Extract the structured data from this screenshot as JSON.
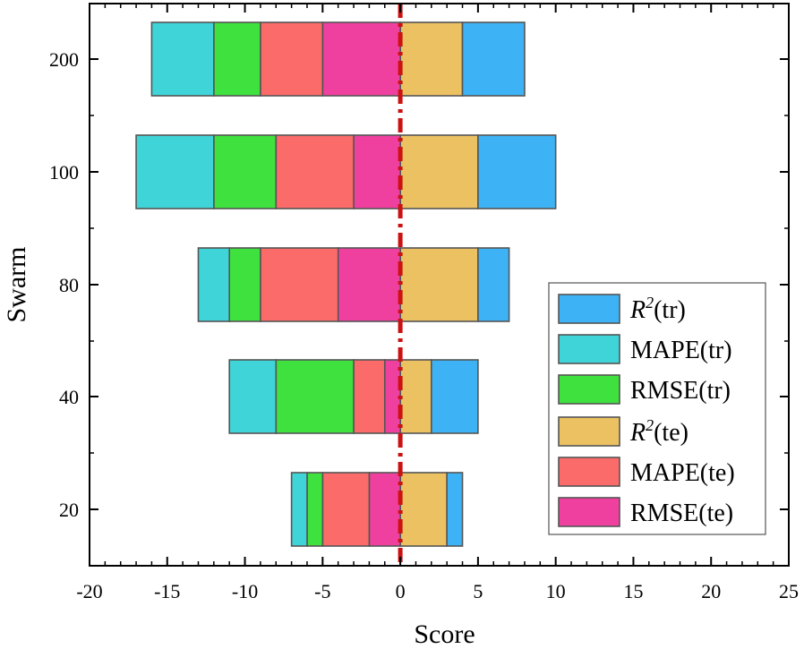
{
  "chart_data": {
    "type": "bar",
    "orientation": "horizontal",
    "stacked": "diverging",
    "title": "",
    "xlabel": "Score",
    "ylabel": "Swarm",
    "xlim": [
      -20,
      25
    ],
    "xticks": [
      -20,
      -15,
      -10,
      -5,
      0,
      5,
      10,
      15,
      20,
      25
    ],
    "categories": [
      "20",
      "40",
      "80",
      "100",
      "200"
    ],
    "reference_line": {
      "x": 0,
      "color": "#cc1111",
      "style": "dash-dot"
    },
    "series": [
      {
        "key": "r2_tr",
        "name": "R2(tr)",
        "base": "R",
        "sup": "2",
        "suffix": "(tr)",
        "italic": true,
        "color": "#3db3f5",
        "side": "positive",
        "values": [
          1,
          3,
          2,
          5,
          4
        ]
      },
      {
        "key": "mape_tr",
        "name": "MAPE(tr)",
        "base": "MAPE",
        "sup": "",
        "suffix": "(tr)",
        "italic": false,
        "color": "#3fd4d7",
        "side": "negative",
        "values": [
          1,
          3,
          2,
          5,
          4
        ]
      },
      {
        "key": "rmse_tr",
        "name": "RMSE(tr)",
        "base": "RMSE",
        "sup": "",
        "suffix": "(tr)",
        "italic": false,
        "color": "#3ee13e",
        "side": "negative",
        "values": [
          1,
          5,
          2,
          4,
          3
        ]
      },
      {
        "key": "r2_te",
        "name": "R2(te)",
        "base": "R",
        "sup": "2",
        "suffix": "(te)",
        "italic": true,
        "color": "#ecc162",
        "side": "positive",
        "values": [
          3,
          2,
          5,
          5,
          4
        ]
      },
      {
        "key": "mape_te",
        "name": "MAPE(te)",
        "base": "MAPE",
        "sup": "",
        "suffix": "(te)",
        "italic": false,
        "color": "#fa6b69",
        "side": "negative",
        "values": [
          3,
          2,
          5,
          5,
          4
        ]
      },
      {
        "key": "rmse_te",
        "name": "RMSE(te)",
        "base": "RMSE",
        "sup": "",
        "suffix": "(te)",
        "italic": false,
        "color": "#f0409f",
        "side": "negative",
        "values": [
          2,
          1,
          4,
          3,
          5
        ]
      }
    ],
    "stack_order_positive": [
      "r2_te",
      "r2_tr"
    ],
    "stack_order_negative": [
      "rmse_te",
      "mape_te",
      "rmse_tr",
      "mape_tr"
    ],
    "legend_position": "lower-right",
    "grid": false
  }
}
